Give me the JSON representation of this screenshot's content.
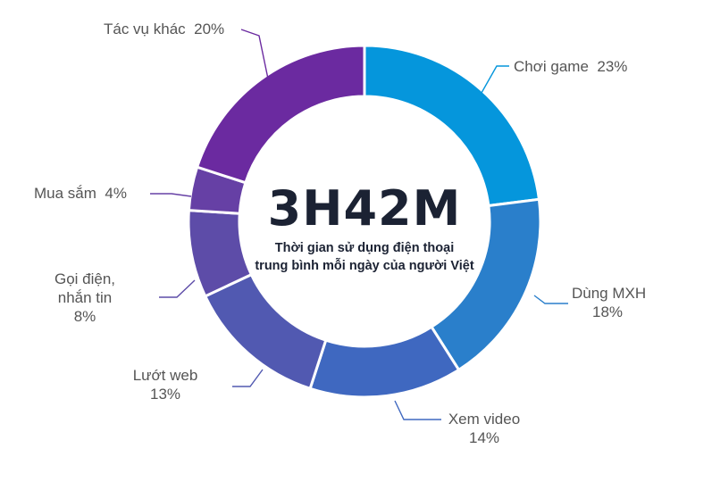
{
  "chart_data": {
    "type": "pie",
    "style": "donut",
    "center_value": "3H42M",
    "center_caption_line1": "Thời gian sử dụng điện thoại",
    "center_caption_line2": "trung bình mỗi ngày của người Việt",
    "slices": [
      {
        "name": "Chơi game",
        "value": 23,
        "value_label": "23%",
        "color": "#0596dc"
      },
      {
        "name": "Dùng MXH",
        "value": 18,
        "value_label": "18%",
        "color": "#2a7fcb"
      },
      {
        "name": "Xem video",
        "value": 14,
        "value_label": "14%",
        "color": "#3f68c0"
      },
      {
        "name": "Lướt web",
        "value": 13,
        "value_label": "13%",
        "color": "#5159b1"
      },
      {
        "name_lines": [
          "Gọi điện,",
          "nhắn tin"
        ],
        "value": 8,
        "value_label": "8%",
        "color": "#5d4ca8"
      },
      {
        "name": "Mua sắm",
        "value": 4,
        "value_label": "4%",
        "color": "#6640a5"
      },
      {
        "name": "Tác vụ khác",
        "value": 20,
        "value_label": "20%",
        "color": "#6b2aa0"
      }
    ]
  }
}
